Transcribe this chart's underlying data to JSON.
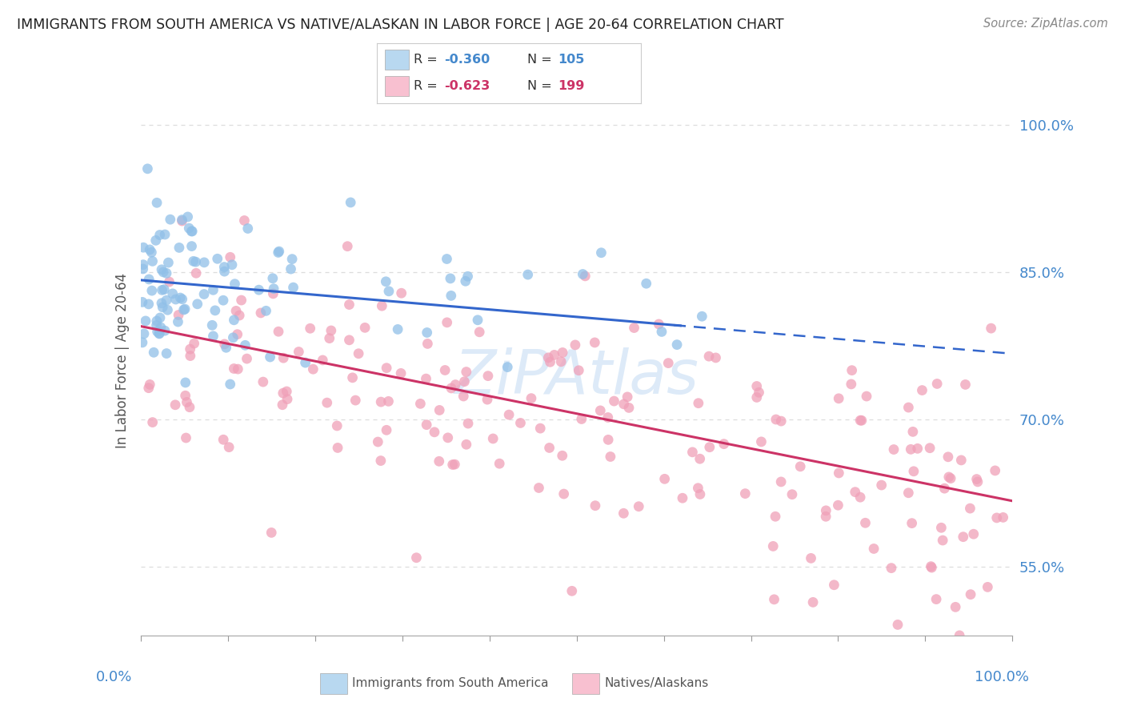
{
  "title": "IMMIGRANTS FROM SOUTH AMERICA VS NATIVE/ALASKAN IN LABOR FORCE | AGE 20-64 CORRELATION CHART",
  "source": "Source: ZipAtlas.com",
  "ylabel_label": "In Labor Force | Age 20-64",
  "yaxis_ticks": [
    55.0,
    70.0,
    85.0,
    100.0
  ],
  "blue_R": -0.36,
  "blue_N": 105,
  "pink_R": -0.623,
  "pink_N": 199,
  "blue_scatter_color": "#90C0E8",
  "pink_scatter_color": "#F0A0B8",
  "blue_line_color": "#3366CC",
  "pink_line_color": "#CC3366",
  "blue_legend_fill": "#B8D8F0",
  "pink_legend_fill": "#F8C0D0",
  "watermark": "ZiPAtlas",
  "watermark_color": "#AACCEE",
  "title_color": "#222222",
  "source_color": "#888888",
  "axis_tick_color": "#4488CC",
  "ylabel_color": "#555555",
  "background_color": "#FFFFFF",
  "grid_color": "#DDDDDD",
  "xlim": [
    0.0,
    100.0
  ],
  "ylim": [
    48.0,
    104.0
  ],
  "blue_line_start_x": 0.0,
  "blue_line_solid_end_x": 62.0,
  "blue_line_end_x": 100.0,
  "blue_intercept": 84.2,
  "blue_slope": -0.075,
  "pink_intercept": 79.5,
  "pink_slope": -0.178
}
